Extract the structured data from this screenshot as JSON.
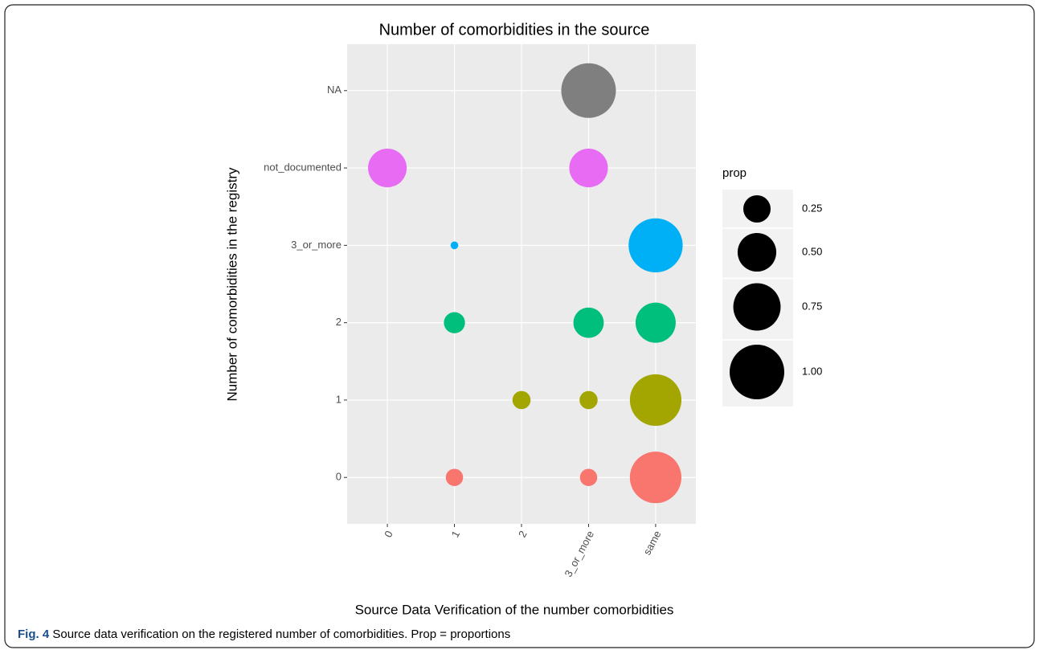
{
  "chart_data": {
    "type": "bubble",
    "title": "Number of comorbidities in the source",
    "x_label": "Source Data Verification of the number comorbidities",
    "y_label": "Number of comorbidities in the registry",
    "x_categories": [
      "0",
      "1",
      "2",
      "3_or_more",
      "same"
    ],
    "y_categories": [
      "0",
      "1",
      "2",
      "3_or_more",
      "not_documented",
      "NA"
    ],
    "y_colors": [
      "#F8766D",
      "#A3A500",
      "#00BF7D",
      "#00B0F6",
      "#E76BF3",
      "#7F7F7F"
    ],
    "points": [
      {
        "x": "3_or_more",
        "y": "NA",
        "size": 1.0
      },
      {
        "x": "0",
        "y": "not_documented",
        "size": 0.5
      },
      {
        "x": "3_or_more",
        "y": "not_documented",
        "size": 0.5
      },
      {
        "x": "1",
        "y": "3_or_more",
        "size": 0.02
      },
      {
        "x": "same",
        "y": "3_or_more",
        "size": 0.98
      },
      {
        "x": "1",
        "y": "2",
        "size": 0.15
      },
      {
        "x": "3_or_more",
        "y": "2",
        "size": 0.31
      },
      {
        "x": "same",
        "y": "2",
        "size": 0.54
      },
      {
        "x": "2",
        "y": "1",
        "size": 0.11
      },
      {
        "x": "3_or_more",
        "y": "1",
        "size": 0.11
      },
      {
        "x": "same",
        "y": "1",
        "size": 0.89
      },
      {
        "x": "1",
        "y": "0",
        "size": 0.1
      },
      {
        "x": "3_or_more",
        "y": "0",
        "size": 0.1
      },
      {
        "x": "same",
        "y": "0",
        "size": 0.89
      }
    ],
    "size_legend": {
      "title": "prop",
      "values": [
        0.25,
        {
          "value": 0.5,
          "label": "0.50"
        },
        0.75,
        {
          "value": 1,
          "label": "1.00"
        }
      ]
    },
    "grid": true
  },
  "caption": {
    "label": "Fig. 4",
    "text": "Source data verification on the registered number of comorbidities. Prop = proportions"
  }
}
